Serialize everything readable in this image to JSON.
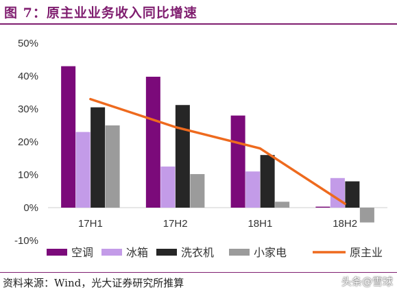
{
  "title": "图 7：原主业业务收入同比增速",
  "source": "资料来源：Wind，光大证券研究所推算",
  "watermark": "头条@雪球",
  "colors": {
    "title": "#7f1d6f",
    "kongtiao": "#7b0a7a",
    "bingxiang": "#c39be8",
    "xiyiji": "#262626",
    "xiaojiadian": "#9b9b9b",
    "yuanzhuye": "#ee6a1e"
  },
  "chart_data": {
    "type": "bar",
    "categories": [
      "17H1",
      "17H2",
      "18H1",
      "18H2"
    ],
    "ylim": [
      -10,
      50
    ],
    "yticks": [
      "-10%",
      "0%",
      "10%",
      "20%",
      "30%",
      "40%",
      "50%"
    ],
    "ytick_values": [
      -10,
      0,
      10,
      20,
      30,
      40,
      50
    ],
    "series": [
      {
        "name": "空调",
        "type": "bar",
        "values": [
          43,
          39.8,
          28,
          0.3
        ]
      },
      {
        "name": "冰箱",
        "type": "bar",
        "values": [
          23,
          12.5,
          11,
          9
        ]
      },
      {
        "name": "洗衣机",
        "type": "bar",
        "values": [
          30.5,
          31.2,
          16,
          8
        ]
      },
      {
        "name": "小家电",
        "type": "bar",
        "values": [
          25,
          10.2,
          1.8,
          -4.5
        ]
      },
      {
        "name": "原主业",
        "type": "line",
        "values": [
          33,
          24.5,
          18,
          1.2
        ]
      }
    ],
    "legend_position": "bottom"
  }
}
